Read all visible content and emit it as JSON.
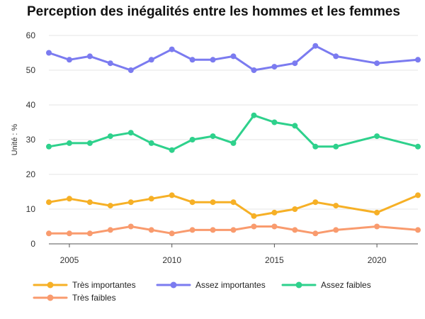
{
  "chart_data": {
    "type": "line",
    "title": "Perception des inégalités entre les hommes et les femmes",
    "ylabel": "Unité : %",
    "xlabel": "",
    "x": [
      2004,
      2005,
      2006,
      2007,
      2008,
      2009,
      2010,
      2011,
      2012,
      2013,
      2014,
      2015,
      2016,
      2017,
      2018,
      2020,
      2022
    ],
    "xticks": [
      2005,
      2010,
      2015,
      2020
    ],
    "xlim": [
      2004,
      2022
    ],
    "ylim": [
      0,
      60
    ],
    "yticks": [
      0,
      10,
      20,
      30,
      40,
      50,
      60
    ],
    "grid": "horizontal",
    "legend_position": "bottom",
    "series": [
      {
        "name": "Très importantes",
        "color": "#F6B026",
        "values": [
          12,
          13,
          12,
          11,
          12,
          13,
          14,
          12,
          12,
          12,
          8,
          9,
          10,
          12,
          11,
          9,
          14
        ]
      },
      {
        "name": "Assez importantes",
        "color": "#7B7BF0",
        "values": [
          55,
          53,
          54,
          52,
          50,
          53,
          56,
          53,
          53,
          54,
          50,
          51,
          52,
          57,
          54,
          52,
          53
        ]
      },
      {
        "name": "Assez faibles",
        "color": "#2ED18C",
        "values": [
          28,
          29,
          29,
          31,
          32,
          29,
          27,
          30,
          31,
          29,
          37,
          35,
          34,
          28,
          28,
          31,
          28
        ]
      },
      {
        "name": "Très faibles",
        "color": "#F99B6E",
        "values": [
          3,
          3,
          3,
          4,
          5,
          4,
          3,
          4,
          4,
          4,
          5,
          5,
          4,
          3,
          4,
          5,
          4
        ]
      }
    ]
  }
}
